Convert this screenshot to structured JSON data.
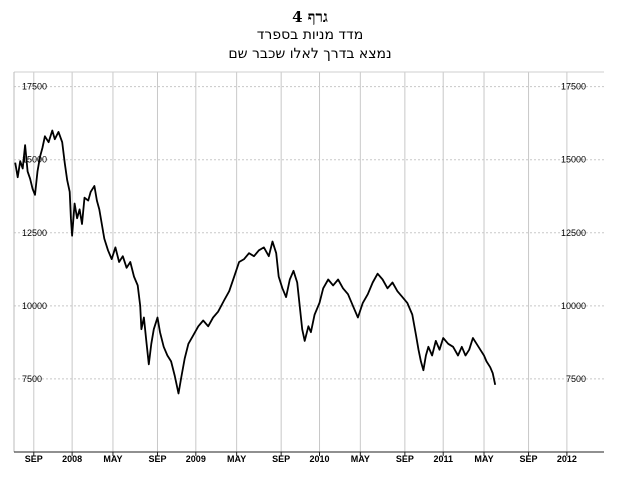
{
  "chart_data": {
    "type": "line",
    "title": "גרף 4",
    "subtitle1": "מדד מניות בספרד",
    "subtitle2": "נמצא בדרך לאלו שכבר שם",
    "xlabel": "",
    "ylabel": "",
    "ylim": [
      5000,
      18000
    ],
    "xlim": [
      2007.55,
      2012.32
    ],
    "grid": true,
    "y_ticks": [
      {
        "value": 17500,
        "label": "17500"
      },
      {
        "value": 15000,
        "label": "15000"
      },
      {
        "value": 12500,
        "label": "12500"
      },
      {
        "value": 10000,
        "label": "10000"
      },
      {
        "value": 7500,
        "label": "7500"
      }
    ],
    "x_ticks": [
      {
        "value": 2007.71,
        "label": "SEP"
      },
      {
        "value": 2008.02,
        "label": "2008"
      },
      {
        "value": 2008.35,
        "label": "MAY"
      },
      {
        "value": 2008.71,
        "label": "SEP"
      },
      {
        "value": 2009.02,
        "label": "2009"
      },
      {
        "value": 2009.35,
        "label": "MAY"
      },
      {
        "value": 2009.71,
        "label": "SEP"
      },
      {
        "value": 2010.02,
        "label": "2010"
      },
      {
        "value": 2010.35,
        "label": "MAY"
      },
      {
        "value": 2010.71,
        "label": "SEP"
      },
      {
        "value": 2011.02,
        "label": "2011"
      },
      {
        "value": 2011.35,
        "label": "MAY"
      },
      {
        "value": 2011.71,
        "label": "SEP"
      },
      {
        "value": 2012.02,
        "label": "2012"
      }
    ],
    "series": [
      {
        "points": [
          [
            2007.56,
            14900
          ],
          [
            2007.58,
            14400
          ],
          [
            2007.6,
            14950
          ],
          [
            2007.62,
            14700
          ],
          [
            2007.64,
            15500
          ],
          [
            2007.66,
            14600
          ],
          [
            2007.68,
            14350
          ],
          [
            2007.7,
            14000
          ],
          [
            2007.72,
            13800
          ],
          [
            2007.74,
            14600
          ],
          [
            2007.76,
            15100
          ],
          [
            2007.78,
            15400
          ],
          [
            2007.8,
            15800
          ],
          [
            2007.83,
            15600
          ],
          [
            2007.86,
            16000
          ],
          [
            2007.88,
            15700
          ],
          [
            2007.91,
            15950
          ],
          [
            2007.94,
            15600
          ],
          [
            2007.96,
            14900
          ],
          [
            2007.98,
            14300
          ],
          [
            2008.0,
            13900
          ],
          [
            2008.01,
            13000
          ],
          [
            2008.02,
            12400
          ],
          [
            2008.04,
            13500
          ],
          [
            2008.06,
            13000
          ],
          [
            2008.08,
            13300
          ],
          [
            2008.1,
            12800
          ],
          [
            2008.12,
            13700
          ],
          [
            2008.15,
            13600
          ],
          [
            2008.17,
            13900
          ],
          [
            2008.2,
            14100
          ],
          [
            2008.22,
            13600
          ],
          [
            2008.24,
            13300
          ],
          [
            2008.26,
            12800
          ],
          [
            2008.28,
            12300
          ],
          [
            2008.31,
            11900
          ],
          [
            2008.34,
            11600
          ],
          [
            2008.37,
            12000
          ],
          [
            2008.4,
            11500
          ],
          [
            2008.43,
            11700
          ],
          [
            2008.46,
            11300
          ],
          [
            2008.49,
            11500
          ],
          [
            2008.52,
            11000
          ],
          [
            2008.55,
            10700
          ],
          [
            2008.57,
            10000
          ],
          [
            2008.58,
            9200
          ],
          [
            2008.6,
            9600
          ],
          [
            2008.62,
            8800
          ],
          [
            2008.64,
            8000
          ],
          [
            2008.66,
            8700
          ],
          [
            2008.68,
            9200
          ],
          [
            2008.71,
            9600
          ],
          [
            2008.73,
            9100
          ],
          [
            2008.76,
            8600
          ],
          [
            2008.79,
            8300
          ],
          [
            2008.82,
            8100
          ],
          [
            2008.85,
            7600
          ],
          [
            2008.88,
            7000
          ],
          [
            2008.9,
            7500
          ],
          [
            2008.93,
            8200
          ],
          [
            2008.96,
            8700
          ],
          [
            2009.0,
            9000
          ],
          [
            2009.04,
            9300
          ],
          [
            2009.08,
            9500
          ],
          [
            2009.12,
            9300
          ],
          [
            2009.16,
            9600
          ],
          [
            2009.2,
            9800
          ],
          [
            2009.25,
            10200
          ],
          [
            2009.29,
            10500
          ],
          [
            2009.33,
            11000
          ],
          [
            2009.37,
            11500
          ],
          [
            2009.41,
            11600
          ],
          [
            2009.45,
            11800
          ],
          [
            2009.49,
            11700
          ],
          [
            2009.53,
            11900
          ],
          [
            2009.57,
            12000
          ],
          [
            2009.61,
            11700
          ],
          [
            2009.64,
            12200
          ],
          [
            2009.67,
            11800
          ],
          [
            2009.69,
            11000
          ],
          [
            2009.72,
            10600
          ],
          [
            2009.75,
            10300
          ],
          [
            2009.78,
            10900
          ],
          [
            2009.81,
            11200
          ],
          [
            2009.84,
            10800
          ],
          [
            2009.86,
            10000
          ],
          [
            2009.88,
            9200
          ],
          [
            2009.9,
            8800
          ],
          [
            2009.93,
            9300
          ],
          [
            2009.95,
            9100
          ],
          [
            2009.98,
            9700
          ],
          [
            2010.02,
            10100
          ],
          [
            2010.05,
            10600
          ],
          [
            2010.09,
            10900
          ],
          [
            2010.13,
            10700
          ],
          [
            2010.17,
            10900
          ],
          [
            2010.21,
            10600
          ],
          [
            2010.25,
            10400
          ],
          [
            2010.29,
            10000
          ],
          [
            2010.33,
            9600
          ],
          [
            2010.37,
            10100
          ],
          [
            2010.41,
            10400
          ],
          [
            2010.45,
            10800
          ],
          [
            2010.49,
            11100
          ],
          [
            2010.53,
            10900
          ],
          [
            2010.57,
            10600
          ],
          [
            2010.61,
            10800
          ],
          [
            2010.65,
            10500
          ],
          [
            2010.69,
            10300
          ],
          [
            2010.73,
            10100
          ],
          [
            2010.77,
            9700
          ],
          [
            2010.8,
            9000
          ],
          [
            2010.82,
            8500
          ],
          [
            2010.84,
            8100
          ],
          [
            2010.86,
            7800
          ],
          [
            2010.88,
            8300
          ],
          [
            2010.9,
            8600
          ],
          [
            2010.93,
            8300
          ],
          [
            2010.96,
            8800
          ],
          [
            2010.99,
            8500
          ],
          [
            2011.02,
            8900
          ],
          [
            2011.06,
            8700
          ],
          [
            2011.1,
            8600
          ],
          [
            2011.14,
            8300
          ],
          [
            2011.17,
            8600
          ],
          [
            2011.2,
            8300
          ],
          [
            2011.23,
            8500
          ],
          [
            2011.26,
            8900
          ],
          [
            2011.29,
            8700
          ],
          [
            2011.32,
            8500
          ],
          [
            2011.35,
            8300
          ],
          [
            2011.37,
            8100
          ],
          [
            2011.4,
            7900
          ],
          [
            2011.42,
            7700
          ],
          [
            2011.44,
            7300
          ]
        ]
      }
    ]
  }
}
